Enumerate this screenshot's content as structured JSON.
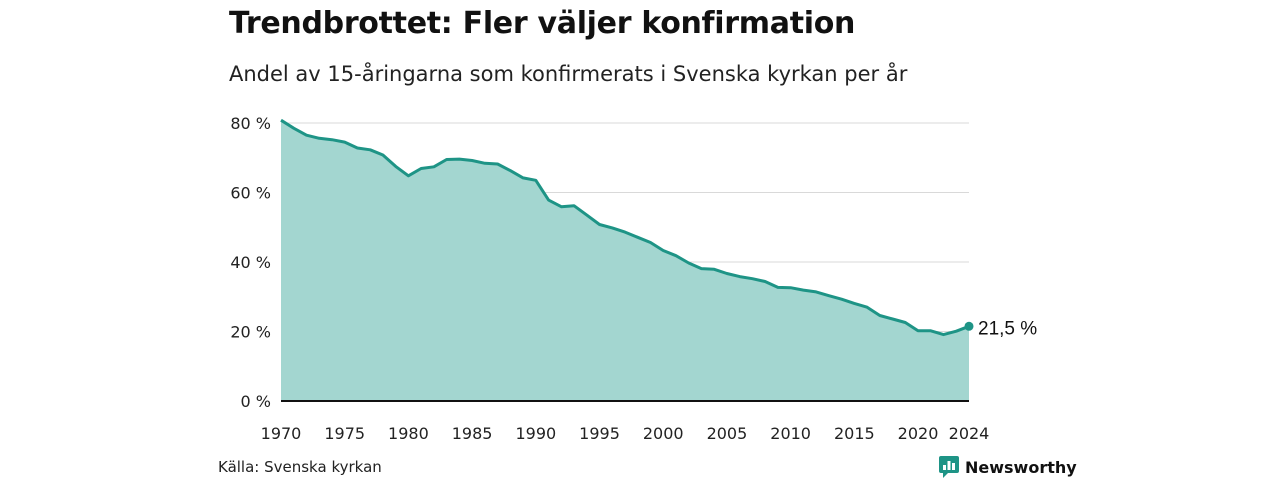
{
  "header": {
    "title": "Trendbrottet: Fler väljer konfirmation",
    "subtitle": "Andel av 15-åringarna som konfirmerats i Svenska kyrkan per år"
  },
  "footer": {
    "source": "Källa: Svenska kyrkan",
    "brand": "Newsworthy"
  },
  "colors": {
    "line": "#1e9486",
    "area": "#a3d6d0",
    "grid": "#d9d9d9",
    "axis": "#111111",
    "brand": "#1e9486"
  },
  "chart_data": {
    "type": "area",
    "x": [
      1970,
      1971,
      1972,
      1973,
      1974,
      1975,
      1976,
      1977,
      1978,
      1979,
      1980,
      1981,
      1982,
      1983,
      1984,
      1985,
      1986,
      1987,
      1988,
      1989,
      1990,
      1991,
      1992,
      1993,
      1994,
      1995,
      1996,
      1997,
      1998,
      1999,
      2000,
      2001,
      2002,
      2003,
      2004,
      2005,
      2006,
      2007,
      2008,
      2009,
      2010,
      2011,
      2012,
      2013,
      2014,
      2015,
      2016,
      2017,
      2018,
      2019,
      2020,
      2021,
      2022,
      2023,
      2024
    ],
    "values": [
      80.8,
      78.5,
      76.5,
      75.6,
      75.2,
      74.5,
      72.8,
      72.3,
      70.8,
      67.5,
      64.8,
      66.9,
      67.4,
      69.5,
      69.6,
      69.2,
      68.4,
      68.2,
      66.3,
      64.2,
      63.5,
      57.8,
      55.9,
      56.2,
      53.5,
      50.8,
      49.8,
      48.6,
      47.1,
      45.6,
      43.3,
      41.8,
      39.7,
      38.1,
      37.9,
      36.7,
      35.8,
      35.2,
      34.4,
      32.7,
      32.6,
      31.9,
      31.4,
      30.3,
      29.3,
      28.1,
      27.0,
      24.6,
      23.6,
      22.6,
      20.2,
      20.2,
      19.1,
      20.1,
      21.5
    ],
    "end_label": "21,5  %",
    "xticks": [
      1970,
      1975,
      1980,
      1985,
      1990,
      1995,
      2000,
      2005,
      2010,
      2015,
      2020,
      2024
    ],
    "yticks": [
      0,
      20,
      40,
      60,
      80
    ],
    "ytick_suffix": " %",
    "xlim": [
      1970,
      2024
    ],
    "ylim": [
      0,
      80
    ],
    "grid": true,
    "xlabel": "",
    "ylabel": ""
  }
}
